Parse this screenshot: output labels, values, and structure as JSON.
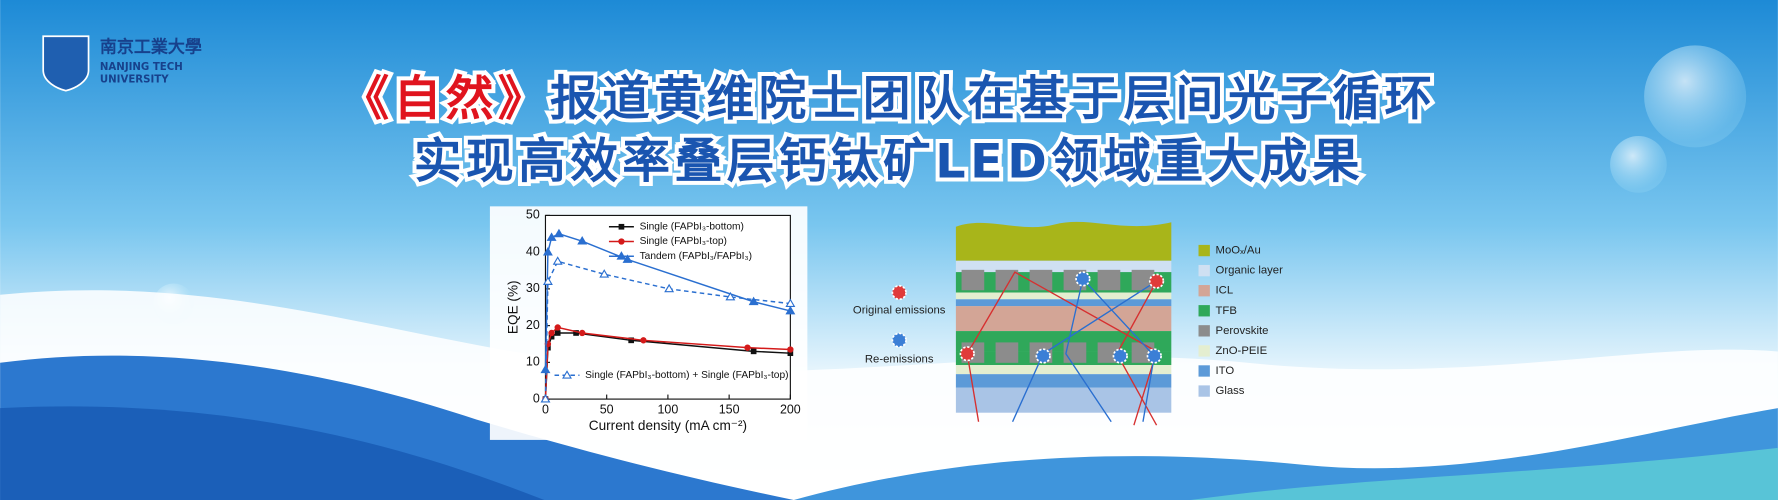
{
  "logo": {
    "name_cn": "南京工業大學",
    "name_en_1": "NANJING TECH",
    "name_en_2": "UNIVERSITY"
  },
  "headline": {
    "line1_highlight": "《自然》",
    "line1_rest": "报道黄维院士团队在基于层间光子循环",
    "line2": "实现高效率叠层钙钛矿LED领域重大成果"
  },
  "chart_data": {
    "type": "line",
    "xlabel": "Current density (mA cm⁻²)",
    "ylabel": "EQE (%)",
    "xlim": [
      0,
      200
    ],
    "ylim": [
      0,
      50
    ],
    "xticks": [
      0,
      50,
      100,
      150,
      200
    ],
    "yticks": [
      0,
      10,
      20,
      30,
      40,
      50
    ],
    "series": [
      {
        "name": "Single (FAPbI₃-bottom)",
        "color": "#111111",
        "marker": "square",
        "dashed": false,
        "x": [
          0,
          2,
          5,
          10,
          25,
          70,
          170,
          200
        ],
        "values": [
          0,
          14,
          17,
          18,
          18,
          16,
          13,
          12.5
        ]
      },
      {
        "name": "Single (FAPbI₃-top)",
        "color": "#d41a1a",
        "marker": "circle",
        "dashed": false,
        "x": [
          0,
          2,
          5,
          10,
          30,
          80,
          165,
          200
        ],
        "values": [
          0,
          15,
          18,
          19.5,
          18,
          16,
          14,
          13.5
        ]
      },
      {
        "name": "Tandem (FAPbI₃/FAPbI₃)",
        "color": "#2a6fd0",
        "marker": "triangle",
        "dashed": false,
        "x": [
          0,
          2,
          5,
          11,
          30,
          67,
          170,
          200
        ],
        "values": [
          8,
          40,
          44,
          45,
          43,
          38,
          26.5,
          24
        ]
      },
      {
        "name": "Single (FAPbI₃-bottom) + Single (FAPbI₃-top)",
        "color": "#2a6fd0",
        "marker": "open-triangle",
        "dashed": true,
        "x": [
          0,
          2,
          10,
          48,
          101,
          151,
          200
        ],
        "values": [
          0,
          32,
          37.5,
          34,
          30,
          27.8,
          26
        ]
      }
    ]
  },
  "diagram": {
    "annotations": {
      "original": "Original emissions",
      "re": "Re-emissions"
    },
    "legend": [
      {
        "label": "MoOₓ/Au",
        "color": "#a8b51a"
      },
      {
        "label": "Organic layer",
        "color": "#cfe0f2"
      },
      {
        "label": "ICL",
        "color": "#d3a596"
      },
      {
        "label": "TFB",
        "color": "#2fa85a"
      },
      {
        "label": "Perovskite",
        "color": "#8c8c8c"
      },
      {
        "label": "ZnO-PEIE",
        "color": "#e4eed0"
      },
      {
        "label": "ITO",
        "color": "#5c9ad8"
      },
      {
        "label": "Glass",
        "color": "#a9c4e6"
      }
    ]
  }
}
